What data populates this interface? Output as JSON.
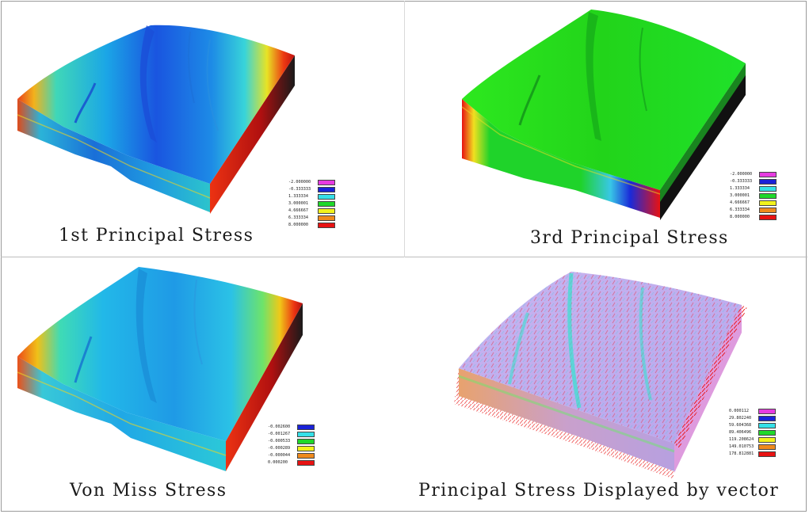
{
  "panels": [
    {
      "caption": "1st Principal Stress",
      "legend": [
        {
          "label": "-2.000000",
          "color": "#e63be0"
        },
        {
          "label": "-0.333333",
          "color": "#1a22d8"
        },
        {
          "label": "1.333334",
          "color": "#35e0e8"
        },
        {
          "label": "3.000001",
          "color": "#1fd82a"
        },
        {
          "label": "4.666667",
          "color": "#f2f21c"
        },
        {
          "label": "6.333334",
          "color": "#ef8a1d"
        },
        {
          "label": "8.000000",
          "color": "#e81212"
        }
      ]
    },
    {
      "caption": "3rd Principal Stress",
      "legend": [
        {
          "label": "-2.000000",
          "color": "#e63be0"
        },
        {
          "label": "-0.333333",
          "color": "#1a22d8"
        },
        {
          "label": "1.333334",
          "color": "#35e0e8"
        },
        {
          "label": "3.000001",
          "color": "#1fd82a"
        },
        {
          "label": "4.666667",
          "color": "#f2f21c"
        },
        {
          "label": "6.333334",
          "color": "#ef8a1d"
        },
        {
          "label": "8.000000",
          "color": "#e81212"
        }
      ]
    },
    {
      "caption": "Von Miss Stress",
      "legend": [
        {
          "label": "-0.002600",
          "color": "#1a22d8"
        },
        {
          "label": "-0.001267",
          "color": "#35e0e8"
        },
        {
          "label": "-0.000533",
          "color": "#1fd82a"
        },
        {
          "label": "-0.000289",
          "color": "#f2f21c"
        },
        {
          "label": "-0.000044",
          "color": "#ef8a1d"
        },
        {
          "label": "0.000200",
          "color": "#e81212"
        }
      ]
    },
    {
      "caption": "Principal Stress Displayed by vector",
      "legend": [
        {
          "label": "0.000112",
          "color": "#e63be0"
        },
        {
          "label": "29.802240",
          "color": "#1a22d8"
        },
        {
          "label": "59.604368",
          "color": "#35e0e8"
        },
        {
          "label": "89.406496",
          "color": "#1fd82a"
        },
        {
          "label": "119.208624",
          "color": "#f2f21c"
        },
        {
          "label": "149.010753",
          "color": "#ef8a1d"
        },
        {
          "label": "178.812881",
          "color": "#e81212"
        }
      ]
    }
  ]
}
